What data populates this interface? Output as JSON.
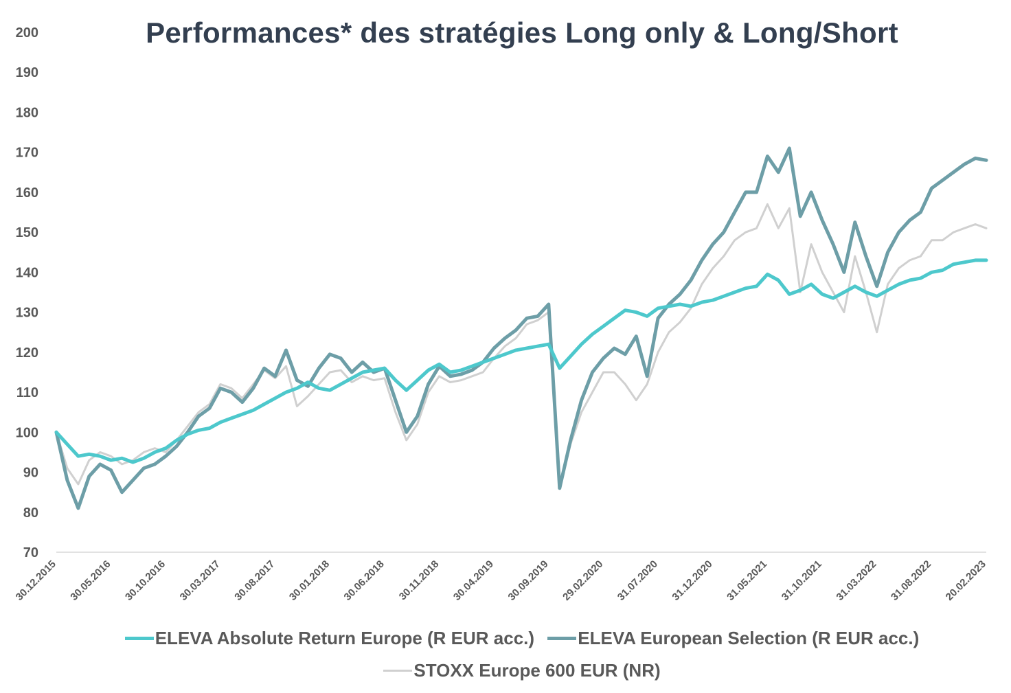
{
  "chart_data": {
    "type": "line",
    "title": "Performances* des stratégies Long only & Long/Short",
    "xlabel": "",
    "ylabel": "",
    "ylim": [
      70,
      200
    ],
    "yticks": [
      70,
      80,
      90,
      100,
      110,
      120,
      130,
      140,
      150,
      160,
      170,
      180,
      190,
      200
    ],
    "xtick_labels": [
      "30.12.2015",
      "30.05.2016",
      "30.10.2016",
      "30.03.2017",
      "30.08.2017",
      "30.01.2018",
      "30.06.2018",
      "30.11.2018",
      "30.04.2019",
      "30.09.2019",
      "29.02.2020",
      "31.07.2020",
      "31.12.2020",
      "31.05.2021",
      "31.10.2021",
      "31.03.2022",
      "31.08.2022",
      "20.02.2023"
    ],
    "grid": false,
    "legend_position": "bottom",
    "x": [
      0,
      1,
      2,
      3,
      4,
      5,
      6,
      7,
      8,
      9,
      10,
      11,
      12,
      13,
      14,
      15,
      16,
      17,
      18,
      19,
      20,
      21,
      22,
      23,
      24,
      25,
      26,
      27,
      28,
      29,
      30,
      31,
      32,
      33,
      34,
      35,
      36,
      37,
      38,
      39,
      40,
      41,
      42,
      43,
      44,
      45,
      46,
      47,
      48,
      49,
      50,
      51,
      52,
      53,
      54,
      55,
      56,
      57,
      58,
      59,
      60,
      61,
      62,
      63,
      64,
      65,
      66,
      67,
      68,
      69,
      70,
      71,
      72,
      73,
      74,
      75,
      76,
      77,
      78,
      79,
      80,
      81,
      82,
      83,
      84,
      85
    ],
    "series": [
      {
        "name": "ELEVA Absolute Return Europe (R EUR acc.)",
        "color": "#4dc8cc",
        "width": 5,
        "values": [
          100,
          97,
          94,
          94.5,
          94,
          93,
          93.5,
          92.5,
          93.5,
          95,
          96,
          98,
          99.5,
          100.5,
          101,
          102.5,
          103.5,
          104.5,
          105.5,
          107,
          108.5,
          110,
          111,
          112.5,
          111,
          110.5,
          112,
          113.5,
          115,
          115.5,
          116,
          113,
          110.5,
          113,
          115.5,
          117,
          115,
          115.5,
          116.5,
          117.5,
          118.5,
          119.5,
          120.5,
          121,
          121.5,
          122,
          116,
          119,
          122,
          124.5,
          126.5,
          128.5,
          130.5,
          130,
          129,
          131,
          131.5,
          132,
          131.5,
          132.5,
          133,
          134,
          135,
          136,
          136.5,
          139.5,
          138,
          134.5,
          135.5,
          137,
          134.5,
          133.5,
          135,
          136.5,
          135,
          134,
          135.5,
          137,
          138,
          138.5,
          140,
          140.5,
          142,
          142.5,
          143,
          143
        ]
      },
      {
        "name": "ELEVA European Selection (R EUR acc.)",
        "color": "#6d9ea7",
        "width": 5,
        "values": [
          100,
          88,
          81,
          89,
          92,
          90.5,
          85,
          88,
          91,
          92,
          94,
          96.5,
          100,
          104,
          106,
          111,
          110,
          107.5,
          111,
          116,
          114,
          120.5,
          113,
          111.5,
          116,
          119.5,
          118.5,
          115,
          117.5,
          115,
          116,
          108,
          100,
          104,
          112,
          116.5,
          114,
          114.5,
          115.5,
          117.5,
          121,
          123.5,
          125.5,
          128.5,
          129,
          132,
          86,
          98,
          108,
          115,
          118.5,
          121,
          119.5,
          124,
          114,
          128.5,
          132,
          134.5,
          138,
          143,
          147,
          150,
          155,
          160,
          160,
          169,
          165,
          171,
          154,
          160,
          153,
          147,
          140,
          152.5,
          144,
          136.5,
          145,
          150,
          153,
          155,
          161,
          163,
          165,
          167,
          168.5,
          168
        ]
      },
      {
        "name": "STOXX Europe 600 EUR (NR)",
        "color": "#d0d0d0",
        "width": 3,
        "values": [
          100,
          91,
          87,
          93,
          95,
          94,
          92,
          93,
          95,
          96,
          95,
          98,
          101.5,
          105,
          107,
          112,
          111,
          108.5,
          112,
          115.5,
          113.5,
          116.5,
          106.5,
          109,
          112,
          115,
          115.5,
          112.5,
          114,
          113,
          113.5,
          105,
          98,
          102,
          110,
          114,
          112.5,
          113,
          114,
          115,
          118.5,
          121.5,
          123.5,
          127,
          128,
          130,
          86,
          97,
          105,
          110,
          115,
          115,
          112,
          108,
          112,
          120,
          125,
          127.5,
          131,
          137,
          141,
          144,
          148,
          150,
          151,
          157,
          151,
          156,
          135,
          147,
          140,
          135,
          130,
          144,
          135,
          125,
          137,
          141,
          143,
          144,
          148,
          148,
          150,
          151,
          152,
          151
        ]
      }
    ]
  }
}
